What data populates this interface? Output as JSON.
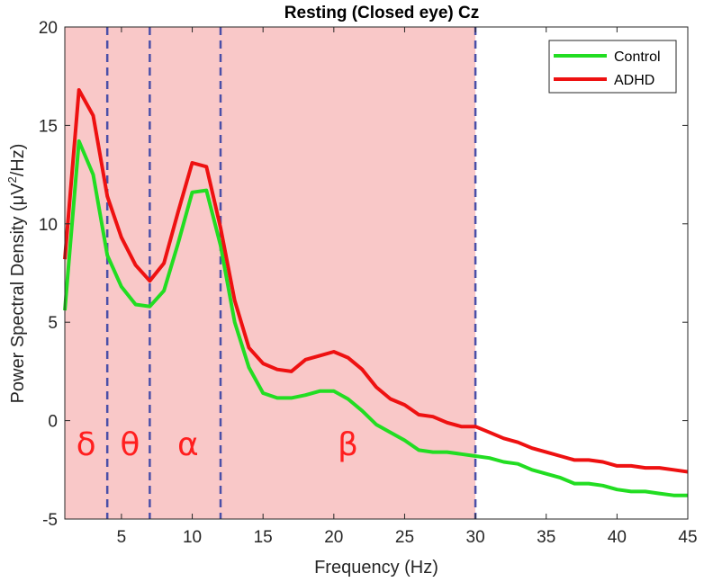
{
  "chart_data": {
    "type": "line",
    "title": "Resting (Closed eye) Cz",
    "xlabel": "Frequency (Hz)",
    "ylabel": "Power Spectral Density (μV²/Hz)",
    "ylabel_parts": {
      "before": "Power Spectral Density (μV",
      "sup": "2",
      "after": "/Hz)"
    },
    "xlim": [
      1,
      45
    ],
    "ylim": [
      -5,
      20
    ],
    "xticks": [
      5,
      10,
      15,
      20,
      25,
      30,
      35,
      40,
      45
    ],
    "yticks": [
      -5,
      0,
      5,
      10,
      15,
      20
    ],
    "grid": false,
    "legend_position": "top-right",
    "shaded_region": {
      "x": [
        1,
        30
      ],
      "color": "#f9c8c8"
    },
    "band_boundaries": [
      4,
      7,
      12,
      30
    ],
    "band_labels": [
      {
        "text": "δ",
        "x": 2.5
      },
      {
        "text": "θ",
        "x": 5.6
      },
      {
        "text": "α",
        "x": 9.7
      },
      {
        "text": "β",
        "x": 21
      }
    ],
    "band_label_y": -1.2,
    "band_label_color": "#ff1f1f",
    "boundary_color": "#4a4fa8",
    "series": [
      {
        "name": "Control",
        "color": "#22dd22",
        "x": [
          1,
          2,
          3,
          4,
          5,
          6,
          7,
          8,
          9,
          10,
          11,
          12,
          13,
          14,
          15,
          16,
          17,
          18,
          19,
          20,
          21,
          22,
          23,
          24,
          25,
          26,
          27,
          28,
          29,
          30,
          31,
          32,
          33,
          34,
          35,
          36,
          37,
          38,
          39,
          40,
          41,
          42,
          43,
          44,
          45
        ],
        "values": [
          5.6,
          14.2,
          12.5,
          8.4,
          6.8,
          5.9,
          5.8,
          6.6,
          9.0,
          11.6,
          11.7,
          8.9,
          5.0,
          2.7,
          1.4,
          1.15,
          1.15,
          1.3,
          1.5,
          1.5,
          1.1,
          0.5,
          -0.2,
          -0.6,
          -1.0,
          -1.5,
          -1.6,
          -1.6,
          -1.7,
          -1.8,
          -1.9,
          -2.1,
          -2.2,
          -2.5,
          -2.7,
          -2.9,
          -3.2,
          -3.2,
          -3.3,
          -3.5,
          -3.6,
          -3.6,
          -3.7,
          -3.8,
          -3.8
        ]
      },
      {
        "name": "ADHD",
        "color": "#ee1111",
        "x": [
          1,
          2,
          3,
          4,
          5,
          6,
          7,
          8,
          9,
          10,
          11,
          12,
          13,
          14,
          15,
          16,
          17,
          18,
          19,
          20,
          21,
          22,
          23,
          24,
          25,
          26,
          27,
          28,
          29,
          30,
          31,
          32,
          33,
          34,
          35,
          36,
          37,
          38,
          39,
          40,
          41,
          42,
          43,
          44,
          45
        ],
        "values": [
          8.2,
          16.8,
          15.5,
          11.4,
          9.3,
          7.9,
          7.1,
          8.0,
          10.6,
          13.1,
          12.9,
          9.8,
          6.1,
          3.7,
          2.9,
          2.6,
          2.5,
          3.1,
          3.3,
          3.5,
          3.2,
          2.6,
          1.7,
          1.1,
          0.8,
          0.3,
          0.2,
          -0.1,
          -0.3,
          -0.3,
          -0.6,
          -0.9,
          -1.1,
          -1.4,
          -1.6,
          -1.8,
          -2.0,
          -2.0,
          -2.1,
          -2.3,
          -2.3,
          -2.4,
          -2.4,
          -2.5,
          -2.6
        ]
      }
    ]
  }
}
